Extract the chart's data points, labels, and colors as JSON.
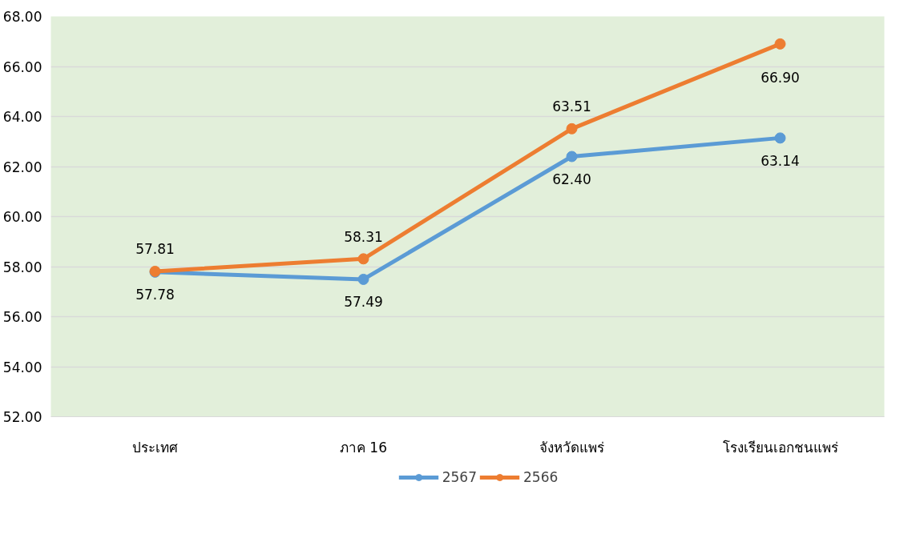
{
  "chart_data": {
    "type": "line",
    "categories": [
      "ประเทศ",
      "ภาค 16",
      "จังหวัดแพร่",
      "โรงเรียนเอกชนแพร่"
    ],
    "series": [
      {
        "name": "2567",
        "color": "#5b9bd5",
        "values": [
          57.78,
          57.49,
          62.4,
          63.14
        ],
        "value_labels": [
          "57.78",
          "57.49",
          "62.40",
          "63.14"
        ]
      },
      {
        "name": "2566",
        "color": "#ed7d31",
        "values": [
          57.81,
          58.31,
          63.51,
          66.9
        ],
        "value_labels": [
          "57.81",
          "58.31",
          "63.51",
          "66.90"
        ]
      }
    ],
    "ylim": [
      52,
      68
    ],
    "yticks": [
      {
        "value": 52,
        "label": "52.00"
      },
      {
        "value": 54,
        "label": "54.00"
      },
      {
        "value": 56,
        "label": "56.00"
      },
      {
        "value": 58,
        "label": "58.00"
      },
      {
        "value": 60,
        "label": "60.00"
      },
      {
        "value": 62,
        "label": "62.00"
      },
      {
        "value": 64,
        "label": "64.00"
      },
      {
        "value": 66,
        "label": "66.00"
      },
      {
        "value": 68,
        "label": "68.00"
      }
    ],
    "grid": "y",
    "legend": "bottom",
    "marker": "circle",
    "line_style": "solid"
  }
}
